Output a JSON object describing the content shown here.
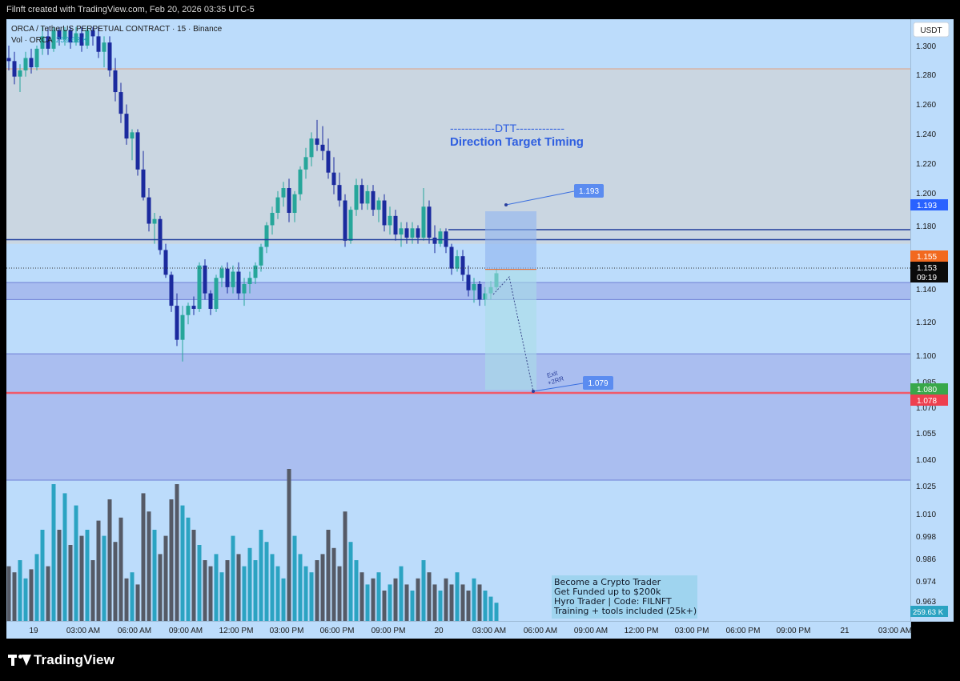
{
  "header": {
    "caption": "Filnft created with TradingView.com, Feb 20, 2026 03:35 UTC-5"
  },
  "legend": {
    "symbol_line": "ORCA / TetherUS PERPETUAL CONTRACT · 15 · Binance",
    "vol_line": "Vol · ORCA",
    "vol_value": "259.63 K"
  },
  "currency_label": "USDT",
  "annotations": {
    "dtt_line": "------------DTT-------------",
    "dtt_subtitle": "Direction Target Timing",
    "target_label": "1.193",
    "exit_label": "1.079",
    "exit_note_1": "Exit",
    "exit_note_2": "+2RR",
    "promo_lines": [
      "Become a Crypto Trader",
      "Get Funded up to $200k",
      "Hyro Trader | Code: FILNFT",
      "Training + tools included (25k+)"
    ]
  },
  "price_tags": {
    "target": "1.193",
    "entry": "1.155",
    "current": "1.153",
    "countdown": "09:19",
    "tp_green": "1.080",
    "tp_red": "1.078",
    "volume": "259.63 K"
  },
  "footer": {
    "brand": "TradingView"
  },
  "colors": {
    "bg": "#bcdcfb",
    "up": "#26a69a",
    "down": "#1b2a9e",
    "vol_up": "#2ba3c2",
    "vol_down": "#555a66",
    "red_line": "#f05a6a",
    "blue_line": "#1e3c9c",
    "tag_blue": "#2962ff",
    "tag_orange": "#f2691e",
    "tag_green": "#38a84a",
    "tag_red": "#ee3f4f"
  },
  "chart_data": {
    "type": "candlestick",
    "interval": "15",
    "y_ticks": [
      "1.300",
      "1.280",
      "1.260",
      "1.240",
      "1.220",
      "1.200",
      "1.180",
      "1.140",
      "1.120",
      "1.100",
      "1.085",
      "1.070",
      "1.055",
      "1.040",
      "1.025",
      "1.010",
      "0.998",
      "0.986",
      "0.974",
      "0.963"
    ],
    "x_labels": [
      "19",
      "03:00 AM",
      "06:00 AM",
      "09:00 AM",
      "12:00 PM",
      "03:00 PM",
      "06:00 PM",
      "09:00 PM",
      "20",
      "03:00 AM",
      "06:00 AM",
      "09:00 AM",
      "12:00 PM",
      "03:00 PM",
      "06:00 PM",
      "09:00 PM",
      "21",
      "03:00 AM"
    ],
    "levels": {
      "resistance_thin": 1.285,
      "blue_line_upper": 1.176,
      "blue_line_lower": 1.17,
      "current": 1.153,
      "zone1": [
        1.136,
        1.147
      ],
      "zone2": [
        1.03,
        1.101
      ],
      "red_line": 1.078,
      "grey_zone": [
        1.172,
        1.285
      ]
    },
    "position": {
      "entry": 1.155,
      "target": 1.193,
      "stop": 1.08,
      "exit": 1.079
    },
    "candles": [
      [
        1.292,
        1.3,
        1.284,
        1.29
      ],
      [
        1.29,
        1.296,
        1.275,
        1.28
      ],
      [
        1.28,
        1.288,
        1.27,
        1.284
      ],
      [
        1.284,
        1.296,
        1.28,
        1.292
      ],
      [
        1.292,
        1.298,
        1.282,
        1.286
      ],
      [
        1.286,
        1.3,
        1.284,
        1.298
      ],
      [
        1.298,
        1.312,
        1.294,
        1.306
      ],
      [
        1.306,
        1.312,
        1.294,
        1.298
      ],
      [
        1.298,
        1.312,
        1.296,
        1.31
      ],
      [
        1.31,
        1.312,
        1.3,
        1.304
      ],
      [
        1.304,
        1.312,
        1.3,
        1.31
      ],
      [
        1.31,
        1.312,
        1.298,
        1.302
      ],
      [
        1.302,
        1.312,
        1.3,
        1.308
      ],
      [
        1.308,
        1.312,
        1.296,
        1.3
      ],
      [
        1.3,
        1.312,
        1.298,
        1.31
      ],
      [
        1.31,
        1.312,
        1.3,
        1.306
      ],
      [
        1.306,
        1.312,
        1.292,
        1.296
      ],
      [
        1.296,
        1.306,
        1.286,
        1.302
      ],
      [
        1.302,
        1.306,
        1.28,
        1.284
      ],
      [
        1.284,
        1.292,
        1.264,
        1.27
      ],
      [
        1.27,
        1.276,
        1.25,
        1.256
      ],
      [
        1.256,
        1.262,
        1.236,
        1.24
      ],
      [
        1.24,
        1.246,
        1.226,
        1.244
      ],
      [
        1.244,
        1.246,
        1.216,
        1.22
      ],
      [
        1.22,
        1.232,
        1.2,
        1.202
      ],
      [
        1.202,
        1.208,
        1.18,
        1.185
      ],
      [
        1.185,
        1.192,
        1.172,
        1.188
      ],
      [
        1.188,
        1.19,
        1.165,
        1.168
      ],
      [
        1.168,
        1.172,
        1.15,
        1.152
      ],
      [
        1.152,
        1.154,
        1.128,
        1.132
      ],
      [
        1.132,
        1.14,
        1.106,
        1.11
      ],
      [
        1.11,
        1.132,
        1.096,
        1.126
      ],
      [
        1.126,
        1.134,
        1.12,
        1.132
      ],
      [
        1.132,
        1.138,
        1.126,
        1.13
      ],
      [
        1.13,
        1.16,
        1.128,
        1.158
      ],
      [
        1.158,
        1.162,
        1.136,
        1.14
      ],
      [
        1.14,
        1.142,
        1.126,
        1.13
      ],
      [
        1.13,
        1.152,
        1.128,
        1.15
      ],
      [
        1.15,
        1.158,
        1.144,
        1.156
      ],
      [
        1.156,
        1.16,
        1.14,
        1.144
      ],
      [
        1.144,
        1.158,
        1.14,
        1.154
      ],
      [
        1.154,
        1.16,
        1.136,
        1.14
      ],
      [
        1.14,
        1.15,
        1.132,
        1.146
      ],
      [
        1.146,
        1.154,
        1.14,
        1.15
      ],
      [
        1.15,
        1.16,
        1.146,
        1.158
      ],
      [
        1.158,
        1.172,
        1.154,
        1.17
      ],
      [
        1.17,
        1.186,
        1.166,
        1.184
      ],
      [
        1.184,
        1.196,
        1.178,
        1.192
      ],
      [
        1.192,
        1.206,
        1.188,
        1.202
      ],
      [
        1.202,
        1.212,
        1.196,
        1.208
      ],
      [
        1.208,
        1.214,
        1.186,
        1.192
      ],
      [
        1.192,
        1.206,
        1.186,
        1.204
      ],
      [
        1.204,
        1.222,
        1.2,
        1.22
      ],
      [
        1.22,
        1.234,
        1.214,
        1.228
      ],
      [
        1.228,
        1.244,
        1.222,
        1.24
      ],
      [
        1.24,
        1.252,
        1.232,
        1.236
      ],
      [
        1.236,
        1.248,
        1.226,
        1.232
      ],
      [
        1.232,
        1.24,
        1.214,
        1.218
      ],
      [
        1.218,
        1.228,
        1.204,
        1.21
      ],
      [
        1.21,
        1.218,
        1.196,
        1.2
      ],
      [
        1.2,
        1.204,
        1.17,
        1.174
      ],
      [
        1.174,
        1.196,
        1.172,
        1.194
      ],
      [
        1.194,
        1.214,
        1.19,
        1.21
      ],
      [
        1.21,
        1.214,
        1.194,
        1.198
      ],
      [
        1.198,
        1.21,
        1.194,
        1.206
      ],
      [
        1.206,
        1.21,
        1.19,
        1.194
      ],
      [
        1.194,
        1.202,
        1.186,
        1.2
      ],
      [
        1.2,
        1.204,
        1.18,
        1.184
      ],
      [
        1.184,
        1.196,
        1.178,
        1.19
      ],
      [
        1.19,
        1.194,
        1.174,
        1.178
      ],
      [
        1.178,
        1.186,
        1.17,
        1.182
      ],
      [
        1.182,
        1.186,
        1.172,
        1.176
      ],
      [
        1.176,
        1.186,
        1.172,
        1.182
      ],
      [
        1.182,
        1.184,
        1.172,
        1.176
      ],
      [
        1.176,
        1.208,
        1.174,
        1.196
      ],
      [
        1.196,
        1.2,
        1.172,
        1.176
      ],
      [
        1.176,
        1.184,
        1.166,
        1.172
      ],
      [
        1.172,
        1.182,
        1.17,
        1.18
      ],
      [
        1.18,
        1.182,
        1.166,
        1.17
      ],
      [
        1.17,
        1.172,
        1.152,
        1.156
      ],
      [
        1.156,
        1.168,
        1.154,
        1.164
      ],
      [
        1.164,
        1.168,
        1.148,
        1.152
      ],
      [
        1.152,
        1.158,
        1.138,
        1.142
      ],
      [
        1.142,
        1.15,
        1.134,
        1.146
      ],
      [
        1.146,
        1.148,
        1.132,
        1.136
      ],
      [
        1.136,
        1.144,
        1.132,
        1.14
      ],
      [
        1.14,
        1.148,
        1.136,
        1.144
      ],
      [
        1.144,
        1.156,
        1.142,
        1.153
      ]
    ],
    "volumes": [
      0.18,
      0.16,
      0.2,
      0.14,
      0.17,
      0.22,
      0.3,
      0.18,
      0.45,
      0.3,
      0.42,
      0.25,
      0.38,
      0.28,
      0.3,
      0.2,
      0.33,
      0.28,
      0.4,
      0.26,
      0.34,
      0.14,
      0.16,
      0.12,
      0.42,
      0.36,
      0.3,
      0.22,
      0.28,
      0.4,
      0.45,
      0.38,
      0.34,
      0.3,
      0.25,
      0.2,
      0.18,
      0.22,
      0.16,
      0.2,
      0.28,
      0.22,
      0.18,
      0.24,
      0.2,
      0.3,
      0.26,
      0.22,
      0.18,
      0.14,
      0.5,
      0.28,
      0.22,
      0.18,
      0.16,
      0.2,
      0.22,
      0.3,
      0.24,
      0.18,
      0.36,
      0.26,
      0.2,
      0.16,
      0.12,
      0.14,
      0.16,
      0.1,
      0.12,
      0.14,
      0.18,
      0.12,
      0.1,
      0.14,
      0.2,
      0.16,
      0.12,
      0.1,
      0.14,
      0.12,
      0.16,
      0.12,
      0.1,
      0.14,
      0.12,
      0.1,
      0.08,
      0.06
    ]
  }
}
